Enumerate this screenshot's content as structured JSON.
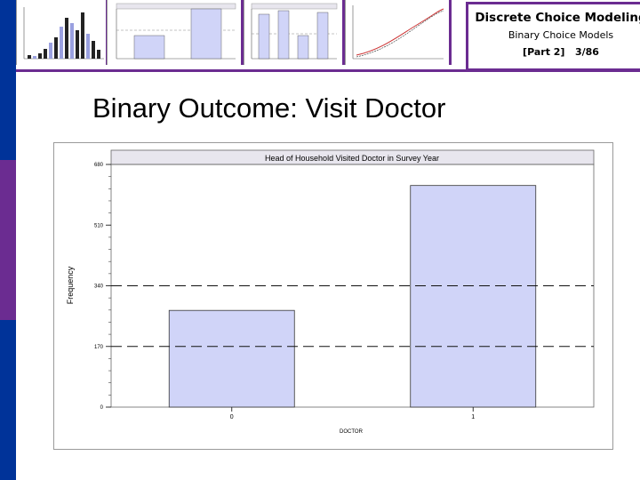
{
  "header": {
    "course_title": "Discrete Choice Modeling",
    "topic": "Binary Choice Models",
    "part": "[Part 2]",
    "slide_number": "3/86"
  },
  "slide": {
    "title": "Binary Outcome: Visit Doctor"
  },
  "colors": {
    "left_bar": [
      "#003399",
      "#6b2c91",
      "#003399"
    ],
    "accent_purple": "#6b2c91",
    "bar_fill": "#d0d4f8",
    "title_band": "#e8e6ee"
  },
  "chart_data": {
    "type": "bar",
    "title": "Head of Household Visited Doctor in Survey Year",
    "xlabel": "DOCTOR",
    "ylabel": "Frequency",
    "categories": [
      "0",
      "1"
    ],
    "values": [
      271,
      621
    ],
    "ylim": [
      0,
      680
    ],
    "yticks": [
      "0",
      "170",
      "340",
      "510",
      "680"
    ],
    "reference_lines": [
      170,
      340
    ],
    "grid": false
  }
}
